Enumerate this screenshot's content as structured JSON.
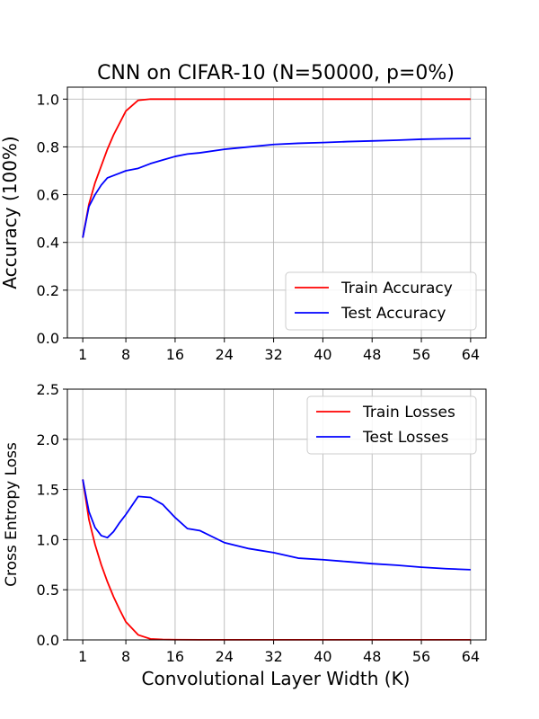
{
  "figure": {
    "title": "CNN on CIFAR-10 (N=50000, p=0%)",
    "xlabel": "Convolutional Layer Width (K)"
  },
  "chart_data": [
    {
      "type": "line",
      "title": "CNN on CIFAR-10 (N=50000, p=0%)",
      "xlabel": "",
      "ylabel": "Accuracy (100%)",
      "xlim": [
        -1.5,
        66.5
      ],
      "ylim": [
        0.0,
        1.05
      ],
      "xticks": [
        1,
        8,
        16,
        24,
        32,
        40,
        48,
        56,
        64
      ],
      "yticks": [
        0.0,
        0.2,
        0.4,
        0.6,
        0.8,
        1.0
      ],
      "ytick_labels": [
        "0.0",
        "0.2",
        "0.4",
        "0.6",
        "0.8",
        "1.0"
      ],
      "grid": true,
      "legend": "lower-right",
      "series": [
        {
          "name": "Train Accuracy",
          "color": "#ff0000",
          "x": [
            1,
            2,
            3,
            4,
            5,
            6,
            7,
            8,
            10,
            12,
            14,
            16,
            18,
            20,
            24,
            28,
            32,
            36,
            40,
            44,
            48,
            52,
            56,
            60,
            64
          ],
          "y": [
            0.42,
            0.56,
            0.65,
            0.72,
            0.79,
            0.85,
            0.9,
            0.95,
            0.995,
            1.0,
            1.0,
            1.0,
            1.0,
            1.0,
            1.0,
            1.0,
            1.0,
            1.0,
            1.0,
            1.0,
            1.0,
            1.0,
            1.0,
            1.0,
            1.0
          ]
        },
        {
          "name": "Test Accuracy",
          "color": "#0000ff",
          "x": [
            1,
            2,
            3,
            4,
            5,
            6,
            7,
            8,
            10,
            12,
            14,
            16,
            18,
            20,
            24,
            28,
            32,
            36,
            40,
            44,
            48,
            52,
            56,
            60,
            64
          ],
          "y": [
            0.42,
            0.55,
            0.6,
            0.64,
            0.67,
            0.68,
            0.69,
            0.7,
            0.71,
            0.73,
            0.745,
            0.76,
            0.77,
            0.775,
            0.79,
            0.8,
            0.81,
            0.815,
            0.818,
            0.822,
            0.825,
            0.828,
            0.832,
            0.834,
            0.835
          ]
        }
      ]
    },
    {
      "type": "line",
      "title": "",
      "xlabel": "Convolutional Layer Width (K)",
      "ylabel": "Cross Entropy Loss",
      "xlim": [
        -1.5,
        66.5
      ],
      "ylim": [
        0.0,
        2.5
      ],
      "xticks": [
        1,
        8,
        16,
        24,
        32,
        40,
        48,
        56,
        64
      ],
      "yticks": [
        0.0,
        0.5,
        1.0,
        1.5,
        2.0,
        2.5
      ],
      "ytick_labels": [
        "0.0",
        "0.5",
        "1.0",
        "1.5",
        "2.0",
        "2.5"
      ],
      "grid": true,
      "legend": "top-right",
      "series": [
        {
          "name": "Train Losses",
          "color": "#ff0000",
          "x": [
            1,
            2,
            3,
            4,
            5,
            6,
            7,
            8,
            10,
            12,
            14,
            16,
            20,
            24,
            32,
            40,
            48,
            56,
            64
          ],
          "y": [
            1.6,
            1.2,
            0.95,
            0.75,
            0.58,
            0.43,
            0.3,
            0.18,
            0.05,
            0.01,
            0.004,
            0.002,
            0.001,
            0.001,
            0.001,
            0.001,
            0.001,
            0.001,
            0.001
          ]
        },
        {
          "name": "Test Losses",
          "color": "#0000ff",
          "x": [
            1,
            2,
            3,
            4,
            5,
            6,
            7,
            8,
            10,
            12,
            14,
            16,
            18,
            20,
            24,
            28,
            32,
            36,
            40,
            44,
            48,
            52,
            56,
            60,
            64
          ],
          "y": [
            1.6,
            1.28,
            1.12,
            1.04,
            1.02,
            1.08,
            1.17,
            1.25,
            1.43,
            1.42,
            1.35,
            1.22,
            1.11,
            1.09,
            0.97,
            0.91,
            0.87,
            0.815,
            0.8,
            0.78,
            0.76,
            0.745,
            0.725,
            0.71,
            0.7
          ]
        }
      ]
    }
  ]
}
